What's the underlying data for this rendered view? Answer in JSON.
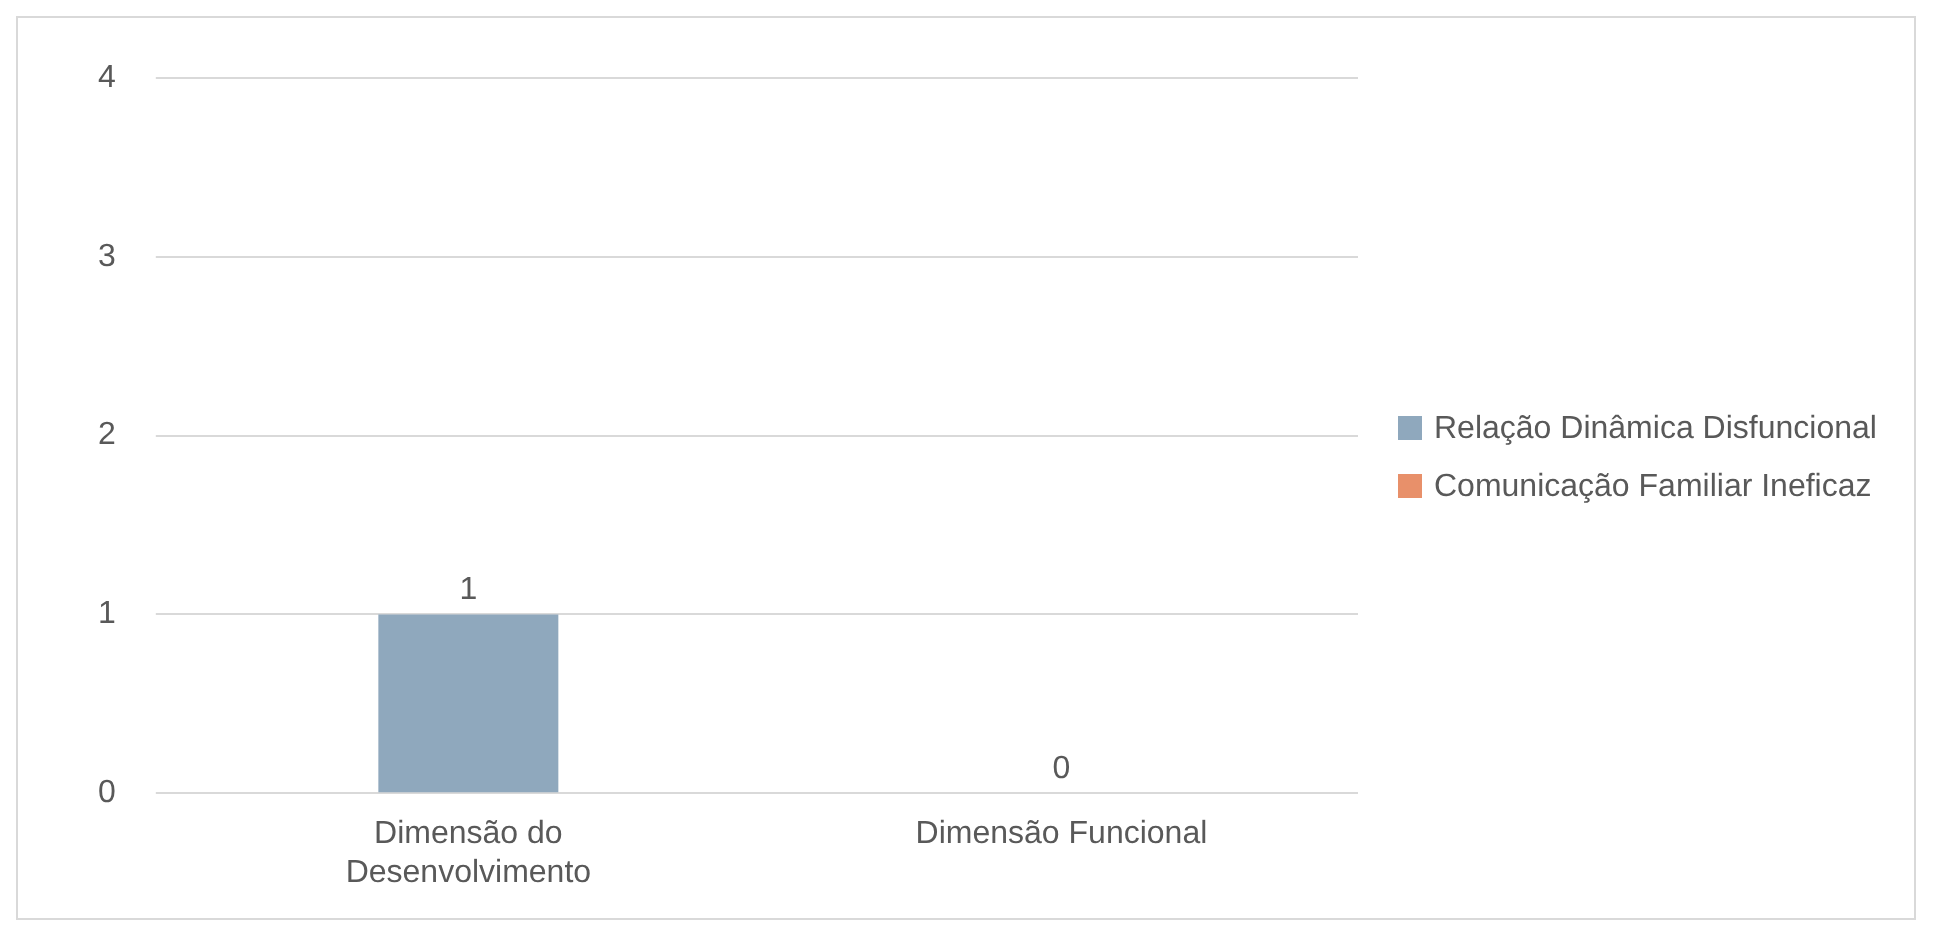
{
  "chart_data": {
    "type": "bar",
    "categories": [
      "Dimensão do Desenvolvimento",
      "Dimensão Funcional"
    ],
    "series": [
      {
        "name": "Relação Dinâmica Disfuncional",
        "color": "#8fa8bd",
        "values": [
          1,
          null
        ]
      },
      {
        "name": "Comunicação Familiar Ineficaz",
        "color": "#e8906a",
        "values": [
          null,
          0
        ]
      }
    ],
    "ylim": [
      0,
      4
    ],
    "yticks": [
      0,
      1,
      2,
      3,
      4
    ],
    "grid": "y",
    "legend": "right",
    "data_labels": true
  }
}
